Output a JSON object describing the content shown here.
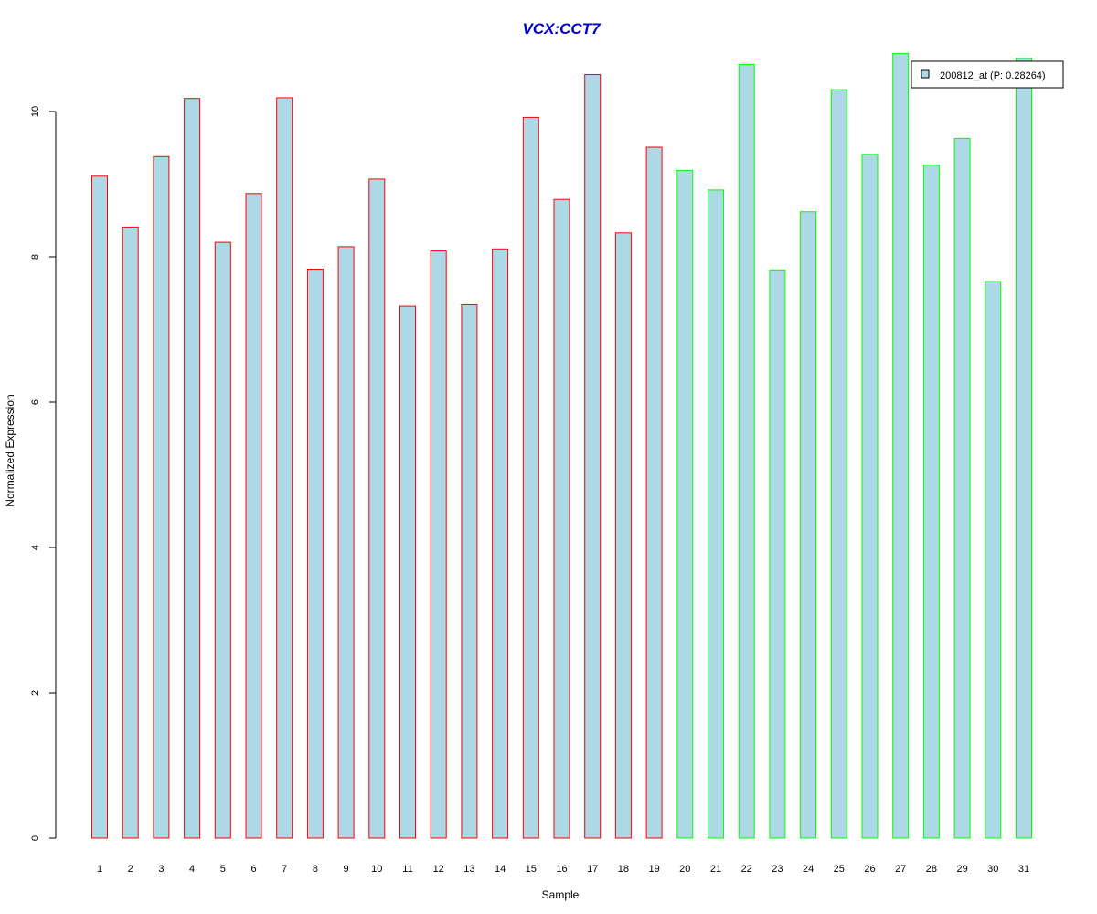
{
  "chart_data": {
    "type": "bar",
    "title": "VCX:CCT7",
    "xlabel": "Sample",
    "ylabel": "Normalized Expression",
    "categories": [
      "1",
      "2",
      "3",
      "4",
      "5",
      "6",
      "7",
      "8",
      "9",
      "10",
      "11",
      "12",
      "13",
      "14",
      "15",
      "16",
      "17",
      "18",
      "19",
      "20",
      "21",
      "22",
      "23",
      "24",
      "25",
      "26",
      "27",
      "28",
      "29",
      "30",
      "31"
    ],
    "values": [
      9.11,
      8.41,
      9.38,
      10.18,
      8.2,
      8.87,
      10.19,
      7.83,
      8.14,
      9.07,
      7.32,
      8.08,
      7.34,
      8.11,
      9.92,
      8.79,
      10.51,
      8.33,
      9.51,
      9.19,
      8.92,
      10.65,
      7.82,
      8.62,
      10.3,
      9.41,
      10.8,
      9.26,
      9.63,
      7.66,
      10.73
    ],
    "yticks": [
      "0",
      "2",
      "4",
      "6",
      "8",
      "10"
    ],
    "ylim": [
      0,
      10.8
    ],
    "grid": false,
    "legend": {
      "label": "200812_at (P: 0.28264)",
      "position": "top-right"
    },
    "series": [
      {
        "name": "200812_at (P: 0.28264)",
        "fill": "#add8e6"
      }
    ],
    "groups": [
      {
        "samples": "1-19",
        "border_color": "#ff0000"
      },
      {
        "samples": "20-31",
        "border_color": "#00ff00"
      }
    ]
  }
}
